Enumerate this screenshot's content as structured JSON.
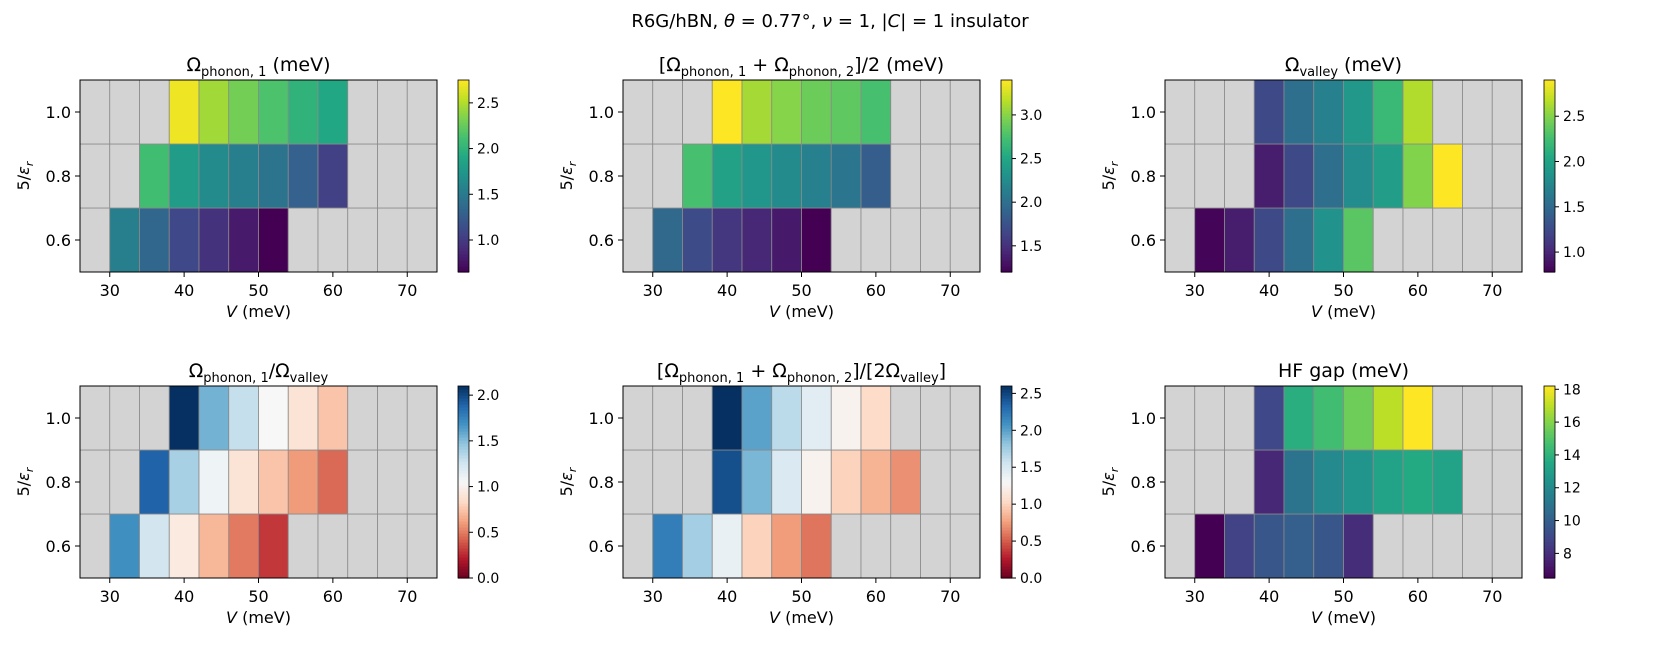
{
  "figure": {
    "suptitle_prefix": "R6G/hBN, ",
    "theta_sym": "θ",
    "theta_value": " = 0.77°,  ",
    "nu_sym": "ν",
    "nu_value": " = 1,  |",
    "c_sym": "C",
    "c_suffix": "| = 1 insulator"
  },
  "colors": {
    "missing": "#d3d3d3",
    "grid": "#8a8a8a"
  },
  "chart_data": [
    {
      "type": "heatmap",
      "title_parts": [
        {
          "t": "Ω"
        },
        {
          "t": "phonon, 1",
          "sub": true
        },
        {
          "t": " (meV)"
        }
      ],
      "xlabel_sym": "V",
      "xlabel_unit": " (meV)",
      "ylabel_num": "5/",
      "ylabel_sym": "ε",
      "ylabel_sub": "r",
      "x": [
        28,
        32,
        36,
        40,
        44,
        48,
        52,
        56,
        60,
        64,
        68,
        72
      ],
      "y": [
        0.6,
        0.8,
        1.0
      ],
      "xlim": [
        26,
        74
      ],
      "ylim": [
        0.5,
        1.1
      ],
      "xticks": [
        "30",
        "40",
        "50",
        "60",
        "70"
      ],
      "xtick_values": [
        30,
        40,
        50,
        60,
        70
      ],
      "yticks": [
        "0.6",
        "0.8",
        "1.0"
      ],
      "ytick_values": [
        0.6,
        0.8,
        1.0
      ],
      "values": [
        [
          null,
          1.55,
          1.35,
          1.1,
          0.95,
          0.8,
          0.6,
          null,
          null,
          null,
          null,
          null
        ],
        [
          null,
          null,
          2.1,
          1.8,
          1.65,
          1.55,
          1.45,
          1.3,
          1.05,
          null,
          null,
          null
        ],
        [
          null,
          null,
          null,
          2.7,
          2.45,
          2.3,
          2.15,
          2.0,
          1.9,
          null,
          null,
          null
        ]
      ],
      "colormap": "viridis",
      "vmin": 0.65,
      "vmax": 2.75,
      "colorbar_ticks": [
        "1.0",
        "1.5",
        "2.0",
        "2.5"
      ],
      "colorbar_tick_values": [
        1.0,
        1.5,
        2.0,
        2.5
      ]
    },
    {
      "type": "heatmap",
      "title_parts": [
        {
          "t": "[Ω"
        },
        {
          "t": "phonon, 1",
          "sub": true
        },
        {
          "t": " + Ω"
        },
        {
          "t": "phonon, 2",
          "sub": true
        },
        {
          "t": "]/2 (meV)"
        }
      ],
      "xlabel_sym": "V",
      "xlabel_unit": " (meV)",
      "ylabel_num": "5/",
      "ylabel_sym": "ε",
      "ylabel_sub": "r",
      "x": [
        28,
        32,
        36,
        40,
        44,
        48,
        52,
        56,
        60,
        64,
        68,
        72
      ],
      "y": [
        0.6,
        0.8,
        1.0
      ],
      "xlim": [
        26,
        74
      ],
      "ylim": [
        0.5,
        1.1
      ],
      "xticks": [
        "30",
        "40",
        "50",
        "60",
        "70"
      ],
      "xtick_values": [
        30,
        40,
        50,
        60,
        70
      ],
      "yticks": [
        "0.6",
        "0.8",
        "1.0"
      ],
      "ytick_values": [
        0.6,
        0.8,
        1.0
      ],
      "values": [
        [
          null,
          1.95,
          1.7,
          1.55,
          1.45,
          1.35,
          1.2,
          null,
          null,
          null,
          null,
          null
        ],
        [
          null,
          null,
          2.75,
          2.45,
          2.35,
          2.25,
          2.15,
          2.05,
          1.85,
          null,
          null,
          null
        ],
        [
          null,
          null,
          null,
          3.4,
          3.1,
          3.0,
          2.9,
          2.85,
          2.75,
          null,
          null,
          null
        ]
      ],
      "colormap": "viridis",
      "vmin": 1.2,
      "vmax": 3.4,
      "colorbar_ticks": [
        "1.5",
        "2.0",
        "2.5",
        "3.0"
      ],
      "colorbar_tick_values": [
        1.5,
        2.0,
        2.5,
        3.0
      ]
    },
    {
      "type": "heatmap",
      "title_parts": [
        {
          "t": "Ω"
        },
        {
          "t": "valley",
          "sub": true
        },
        {
          "t": " (meV)"
        }
      ],
      "xlabel_sym": "V",
      "xlabel_unit": " (meV)",
      "ylabel_num": "5/",
      "ylabel_sym": "ε",
      "ylabel_sub": "r",
      "x": [
        28,
        32,
        36,
        40,
        44,
        48,
        52,
        56,
        60,
        64,
        68,
        72
      ],
      "y": [
        0.6,
        0.8,
        1.0
      ],
      "xlim": [
        26,
        74
      ],
      "ylim": [
        0.5,
        1.1
      ],
      "xticks": [
        "30",
        "40",
        "50",
        "60",
        "70"
      ],
      "xtick_values": [
        30,
        40,
        50,
        60,
        70
      ],
      "yticks": [
        "0.6",
        "0.8",
        "1.0"
      ],
      "ytick_values": [
        0.6,
        0.8,
        1.0
      ],
      "values": [
        [
          null,
          0.8,
          0.95,
          1.25,
          1.55,
          1.85,
          2.35,
          null,
          null,
          null,
          null,
          null
        ],
        [
          null,
          null,
          null,
          0.95,
          1.25,
          1.55,
          1.8,
          1.95,
          2.5,
          2.9,
          null,
          null
        ],
        [
          null,
          null,
          null,
          1.25,
          1.55,
          1.7,
          1.9,
          2.2,
          2.65,
          null,
          null,
          null
        ]
      ],
      "colormap": "viridis",
      "vmin": 0.78,
      "vmax": 2.9,
      "colorbar_ticks": [
        "1.0",
        "1.5",
        "2.0",
        "2.5"
      ],
      "colorbar_tick_values": [
        1.0,
        1.5,
        2.0,
        2.5
      ]
    },
    {
      "type": "heatmap",
      "title_parts": [
        {
          "t": "Ω"
        },
        {
          "t": "phonon, 1",
          "sub": true
        },
        {
          "t": "/Ω"
        },
        {
          "t": "valley",
          "sub": true
        }
      ],
      "xlabel_sym": "V",
      "xlabel_unit": " (meV)",
      "ylabel_num": "5/",
      "ylabel_sym": "ε",
      "ylabel_sub": "r",
      "x": [
        28,
        32,
        36,
        40,
        44,
        48,
        52,
        56,
        60,
        64,
        68,
        72
      ],
      "y": [
        0.6,
        0.8,
        1.0
      ],
      "xlim": [
        26,
        74
      ],
      "ylim": [
        0.5,
        1.1
      ],
      "xticks": [
        "30",
        "40",
        "50",
        "60",
        "70"
      ],
      "xtick_values": [
        30,
        40,
        50,
        60,
        70
      ],
      "yticks": [
        "0.6",
        "0.8",
        "1.0"
      ],
      "ytick_values": [
        0.6,
        0.8,
        1.0
      ],
      "values": [
        [
          null,
          1.7,
          1.25,
          0.95,
          0.7,
          0.5,
          0.3,
          null,
          null,
          null,
          null,
          null
        ],
        [
          null,
          null,
          1.9,
          1.4,
          1.1,
          0.9,
          0.75,
          0.6,
          0.45,
          null,
          null,
          null
        ],
        [
          null,
          null,
          null,
          2.1,
          1.55,
          1.3,
          1.05,
          0.9,
          0.75,
          null,
          null,
          null
        ]
      ],
      "colormap": "RdBu",
      "vmin": 0.0,
      "vmax": 2.1,
      "colorbar_ticks": [
        "0.0",
        "0.5",
        "1.0",
        "1.5",
        "2.0"
      ],
      "colorbar_tick_values": [
        0.0,
        0.5,
        1.0,
        1.5,
        2.0
      ]
    },
    {
      "type": "heatmap",
      "title_parts": [
        {
          "t": "[Ω"
        },
        {
          "t": "phonon, 1",
          "sub": true
        },
        {
          "t": " + Ω"
        },
        {
          "t": "phonon, 2",
          "sub": true
        },
        {
          "t": "]/[2Ω"
        },
        {
          "t": "valley",
          "sub": true
        },
        {
          "t": "]"
        }
      ],
      "xlabel_sym": "V",
      "xlabel_unit": " (meV)",
      "ylabel_num": "5/",
      "ylabel_sym": "ε",
      "ylabel_sub": "r",
      "x": [
        28,
        32,
        36,
        40,
        44,
        48,
        52,
        56,
        60,
        64,
        68,
        72
      ],
      "y": [
        0.6,
        0.8,
        1.0
      ],
      "xlim": [
        26,
        74
      ],
      "ylim": [
        0.5,
        1.1
      ],
      "xticks": [
        "30",
        "40",
        "50",
        "60",
        "70"
      ],
      "xtick_values": [
        30,
        40,
        50,
        60,
        70
      ],
      "yticks": [
        "0.6",
        "0.8",
        "1.0"
      ],
      "ytick_values": [
        0.6,
        0.8,
        1.0
      ],
      "values": [
        [
          null,
          2.2,
          1.75,
          1.4,
          1.0,
          0.75,
          0.6,
          null,
          null,
          null,
          null,
          null
        ],
        [
          null,
          null,
          null,
          2.45,
          1.9,
          1.5,
          1.25,
          1.0,
          0.85,
          0.7,
          null,
          null
        ],
        [
          null,
          null,
          null,
          2.6,
          2.0,
          1.65,
          1.45,
          1.25,
          1.05,
          null,
          null,
          null
        ]
      ],
      "colormap": "RdBu",
      "vmin": 0.0,
      "vmax": 2.6,
      "colorbar_ticks": [
        "0.0",
        "0.5",
        "1.0",
        "1.5",
        "2.0",
        "2.5"
      ],
      "colorbar_tick_values": [
        0.0,
        0.5,
        1.0,
        1.5,
        2.0,
        2.5
      ]
    },
    {
      "type": "heatmap",
      "title_parts": [
        {
          "t": "HF gap (meV)"
        }
      ],
      "xlabel_sym": "V",
      "xlabel_unit": " (meV)",
      "ylabel_num": "5/",
      "ylabel_sym": "ε",
      "ylabel_sub": "r",
      "x": [
        28,
        32,
        36,
        40,
        44,
        48,
        52,
        56,
        60,
        64,
        68,
        72
      ],
      "y": [
        0.6,
        0.8,
        1.0
      ],
      "xlim": [
        26,
        74
      ],
      "ylim": [
        0.5,
        1.1
      ],
      "xticks": [
        "30",
        "40",
        "50",
        "60",
        "70"
      ],
      "xtick_values": [
        30,
        40,
        50,
        60,
        70
      ],
      "yticks": [
        "0.6",
        "0.8",
        "1.0"
      ],
      "ytick_values": [
        0.6,
        0.8,
        1.0
      ],
      "values": [
        [
          null,
          6.5,
          8.8,
          9.6,
          10.0,
          9.6,
          8.0,
          null,
          null,
          null,
          null,
          null
        ],
        [
          null,
          null,
          null,
          7.8,
          11.0,
          12.0,
          12.5,
          13.2,
          13.6,
          13.2,
          null,
          null
        ],
        [
          null,
          null,
          null,
          9.0,
          13.8,
          14.6,
          15.6,
          17.0,
          18.2,
          null,
          null,
          null
        ]
      ],
      "colormap": "viridis",
      "vmin": 6.5,
      "vmax": 18.2,
      "colorbar_ticks": [
        "8",
        "10",
        "12",
        "14",
        "16",
        "18"
      ],
      "colorbar_tick_values": [
        8,
        10,
        12,
        14,
        16,
        18
      ]
    }
  ]
}
